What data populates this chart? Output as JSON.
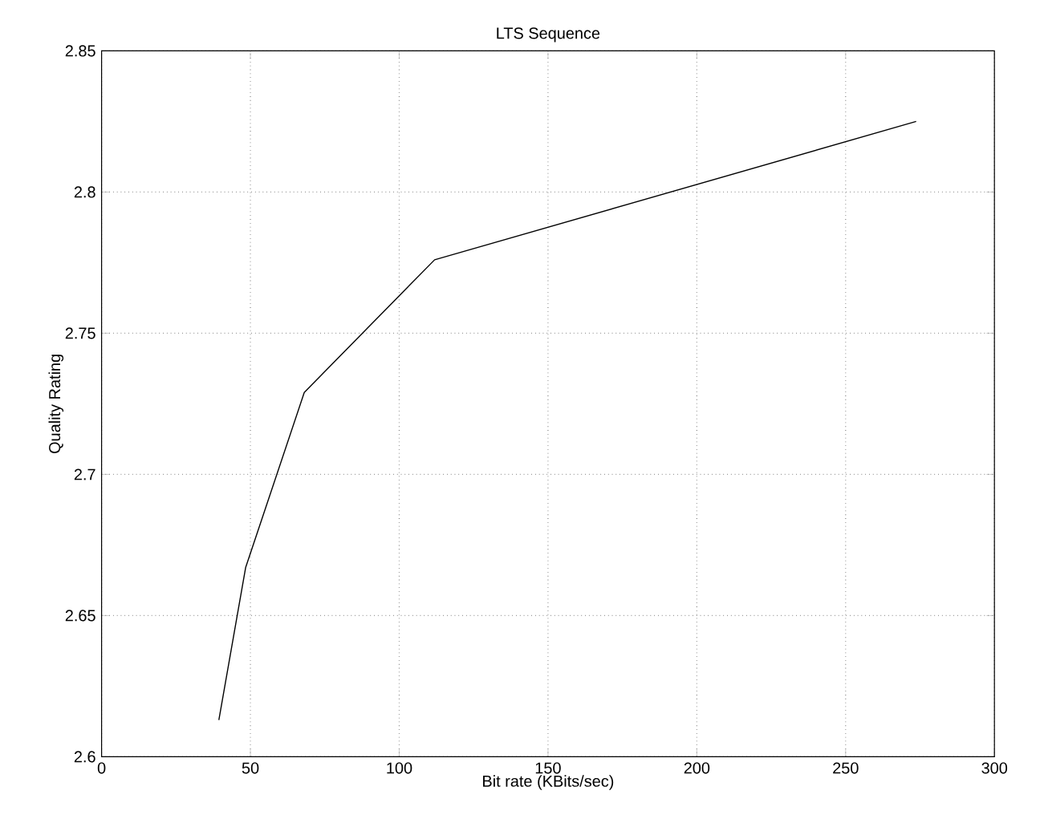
{
  "chart_data": {
    "type": "line",
    "title": "LTS Sequence",
    "xlabel": "Bit rate (KBits/sec)",
    "ylabel": "Quality Rating",
    "x": [
      39.4,
      48.4,
      68.1,
      111.9,
      273.7
    ],
    "values": [
      2.613,
      2.667,
      2.729,
      2.776,
      2.825
    ],
    "color": "#000000",
    "xlim": [
      0,
      300
    ],
    "ylim": [
      2.6,
      2.85
    ],
    "xticks": [
      0,
      50,
      100,
      150,
      200,
      250,
      300
    ],
    "yticks": [
      2.6,
      2.65,
      2.7,
      2.75,
      2.8,
      2.85
    ],
    "grid": true
  }
}
